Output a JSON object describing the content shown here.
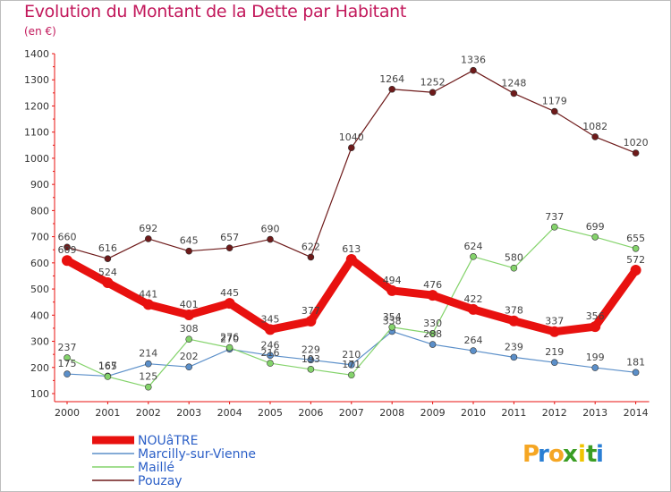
{
  "title": "Evolution du Montant de la Dette par Habitant",
  "subtitle": "(en €)",
  "brand": {
    "letters": [
      "P",
      "r",
      "o",
      "x",
      "i",
      "t",
      "i"
    ],
    "colors": [
      "#f5a623",
      "#2a7fd4",
      "#f5a623",
      "#3a9d23",
      "#f0c400",
      "#3a9d23",
      "#2a7fd4"
    ]
  },
  "chart_data": {
    "type": "line",
    "x": [
      "2000",
      "2001",
      "2002",
      "2003",
      "2004",
      "2005",
      "2006",
      "2007",
      "2008",
      "2009",
      "2010",
      "2011",
      "2012",
      "2013",
      "2014"
    ],
    "ylim": [
      100,
      1400
    ],
    "yticks": [
      "100",
      "200",
      "300",
      "400",
      "500",
      "600",
      "700",
      "800",
      "900",
      "1000",
      "1100",
      "1200",
      "1300",
      "1400"
    ],
    "grid": false,
    "legend_position": "bottom-left",
    "series": [
      {
        "name": "NOUâTRE",
        "color": "#e8110f",
        "values": [
          609,
          524,
          441,
          401,
          445,
          345,
          377,
          613,
          494,
          476,
          422,
          378,
          337,
          356,
          572
        ],
        "labels": [
          "609",
          "524",
          "441",
          "401",
          "445",
          "345",
          "377",
          "613",
          "494",
          "476",
          "422",
          "378",
          "337",
          "356",
          "572"
        ]
      },
      {
        "name": "Marcilly-sur-Vienne",
        "color": "#5b8fc9",
        "values": [
          175,
          167,
          214,
          202,
          270,
          246,
          229,
          210,
          338,
          288,
          264,
          239,
          219,
          199,
          181
        ],
        "labels": [
          "175",
          "167",
          "214",
          "202",
          "270",
          "246",
          "229",
          "210",
          "338",
          "288",
          "264",
          "239",
          "219",
          "199",
          "181"
        ]
      },
      {
        "name": "Maillé",
        "color": "#84d36b",
        "values": [
          237,
          165,
          125,
          308,
          276,
          216,
          193,
          171,
          354,
          330,
          624,
          580,
          737,
          699,
          655
        ],
        "labels": [
          "237",
          "165",
          "125",
          "308",
          "276",
          "216",
          "193",
          "171",
          "354",
          "330",
          "624",
          "580",
          "737",
          "699",
          "655"
        ]
      },
      {
        "name": "Pouzay",
        "color": "#6e1a1a",
        "values": [
          660,
          616,
          692,
          645,
          657,
          690,
          622,
          1040,
          1264,
          1252,
          1336,
          1248,
          1179,
          1082,
          1020
        ],
        "labels": [
          "660",
          "616",
          "692",
          "645",
          "657",
          "690",
          "622",
          "1040",
          "1264",
          "1252",
          "1336",
          "1248",
          "1179",
          "1082",
          "1020"
        ]
      }
    ]
  }
}
